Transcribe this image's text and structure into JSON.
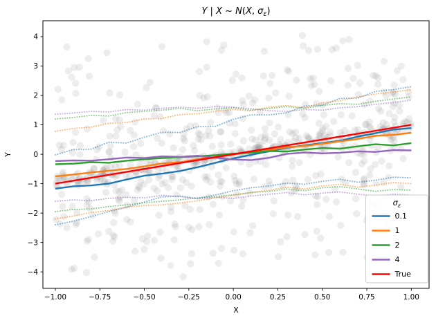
{
  "figure": {
    "title_plain": "Y | X ~ N(X, σₑ)",
    "title_segments": [
      {
        "t": "Y",
        "i": true
      },
      {
        "t": " | "
      },
      {
        "t": "X",
        "i": true
      },
      {
        "t": " ~ "
      },
      {
        "t": "N",
        "i": true
      },
      {
        "t": "("
      },
      {
        "t": "X",
        "i": true
      },
      {
        "t": ", "
      },
      {
        "t": "σ",
        "i": true
      },
      {
        "t": "ε",
        "i": true,
        "sub": true
      },
      {
        "t": ")"
      }
    ],
    "background_color": "#ffffff",
    "spine_color": "#000000",
    "legend": {
      "title_plain": "σε",
      "title_segments": [
        {
          "t": "σ",
          "i": true
        },
        {
          "t": "ε",
          "i": true,
          "sub": true
        }
      ],
      "entries": [
        {
          "label": "0.1",
          "color": "#1f77b4"
        },
        {
          "label": "1",
          "color": "#ff7f0e"
        },
        {
          "label": "2",
          "color": "#2ca02c"
        },
        {
          "label": "4",
          "color": "#9467bd"
        },
        {
          "label": "True",
          "color": "#ff0000"
        }
      ]
    }
  },
  "chart_data": {
    "type": "scatter",
    "title": "Y | X ~ N(X, σ_ε)",
    "xlabel": "X",
    "ylabel": "Y",
    "xlim": [
      -1.07,
      1.1
    ],
    "ylim": [
      -4.56,
      4.54
    ],
    "grid": false,
    "legend_position": "lower right",
    "x_ticks": {
      "values": [
        -1.0,
        -0.75,
        -0.5,
        -0.25,
        0.0,
        0.25,
        0.5,
        0.75,
        1.0
      ],
      "labels": [
        "−1.00",
        "−0.75",
        "−0.50",
        "−0.25",
        "0.00",
        "0.25",
        "0.50",
        "0.75",
        "1.00"
      ]
    },
    "y_ticks": {
      "values": [
        -4,
        -3,
        -2,
        -1,
        0,
        1,
        2,
        3,
        4
      ],
      "labels": [
        "−4",
        "−3",
        "−2",
        "−1",
        "0",
        "1",
        "2",
        "3",
        "4"
      ]
    },
    "line_x": [
      -1,
      -0.9,
      -0.8,
      -0.7,
      -0.6,
      -0.5,
      -0.4,
      -0.3,
      -0.2,
      -0.1,
      0,
      0.1,
      0.2,
      0.3,
      0.4,
      0.5,
      0.6,
      0.7,
      0.8,
      0.9,
      1
    ],
    "series": [
      {
        "name": "0.1",
        "color": "#1f77b4",
        "role": "estimate",
        "mean": [
          -1.17,
          -1.09,
          -1.06,
          -1.0,
          -0.86,
          -0.73,
          -0.66,
          -0.57,
          -0.44,
          -0.29,
          -0.14,
          -0.02,
          0.1,
          0.22,
          0.3,
          0.38,
          0.46,
          0.6,
          0.72,
          0.84,
          0.89
        ],
        "upper": [
          -0.02,
          0.16,
          0.17,
          0.41,
          0.38,
          0.58,
          0.75,
          0.74,
          0.94,
          0.95,
          1.19,
          1.34,
          1.34,
          1.41,
          1.64,
          1.67,
          1.9,
          1.91,
          2.14,
          2.2,
          2.3
        ],
        "lower": [
          -2.4,
          -2.28,
          -2.12,
          -1.95,
          -1.8,
          -1.62,
          -1.45,
          -1.42,
          -1.5,
          -1.38,
          -1.24,
          -1.14,
          -1.08,
          -0.98,
          -1.02,
          -0.92,
          -0.85,
          -0.95,
          -0.88,
          -0.78,
          -0.8
        ]
      },
      {
        "name": "1",
        "color": "#ff7f0e",
        "role": "estimate",
        "mean": [
          -0.75,
          -0.69,
          -0.62,
          -0.56,
          -0.5,
          -0.41,
          -0.31,
          -0.27,
          -0.17,
          -0.09,
          -0.01,
          0.09,
          0.14,
          0.24,
          0.28,
          0.36,
          0.44,
          0.52,
          0.63,
          0.66,
          0.73
        ],
        "upper": [
          0.78,
          0.88,
          0.92,
          1.05,
          1.08,
          1.2,
          1.22,
          1.35,
          1.38,
          1.46,
          1.52,
          1.48,
          1.6,
          1.66,
          1.58,
          1.75,
          1.82,
          1.95,
          2.05,
          2.12,
          2.19
        ],
        "lower": [
          -2.2,
          -2.1,
          -1.98,
          -1.92,
          -1.8,
          -1.74,
          -1.72,
          -1.66,
          -1.58,
          -1.48,
          -1.4,
          -1.3,
          -1.22,
          -1.12,
          -1.18,
          -1.08,
          -1.02,
          -1.12,
          -1.05,
          -0.96,
          -1.0
        ]
      },
      {
        "name": "2",
        "color": "#2ca02c",
        "role": "estimate",
        "mean": [
          -0.34,
          -0.32,
          -0.27,
          -0.29,
          -0.22,
          -0.17,
          -0.13,
          -0.1,
          -0.07,
          -0.03,
          0.02,
          0.05,
          0.11,
          0.09,
          0.16,
          0.21,
          0.19,
          0.27,
          0.34,
          0.3,
          0.38
        ],
        "upper": [
          1.2,
          1.25,
          1.32,
          1.3,
          1.42,
          1.46,
          1.5,
          1.56,
          1.48,
          1.54,
          1.58,
          1.5,
          1.56,
          1.62,
          1.56,
          1.66,
          1.72,
          1.7,
          1.8,
          1.88,
          1.95
        ],
        "lower": [
          -1.95,
          -1.88,
          -1.86,
          -1.78,
          -1.72,
          -1.65,
          -1.6,
          -1.55,
          -1.48,
          -1.44,
          -1.38,
          -1.3,
          -1.26,
          -1.18,
          -1.24,
          -1.14,
          -1.1,
          -1.18,
          -1.26,
          -1.2,
          -1.22
        ]
      },
      {
        "name": "4",
        "color": "#9467bd",
        "role": "estimate",
        "mean": [
          -0.23,
          -0.21,
          -0.22,
          -0.17,
          -0.11,
          -0.13,
          -0.07,
          -0.09,
          -0.05,
          -0.12,
          -0.18,
          -0.2,
          -0.12,
          0.01,
          0.06,
          0.03,
          0.05,
          0.1,
          0.08,
          0.14,
          0.13
        ],
        "upper": [
          1.36,
          1.4,
          1.46,
          1.44,
          1.52,
          1.5,
          1.56,
          1.6,
          1.56,
          1.62,
          1.6,
          1.55,
          1.48,
          1.46,
          1.52,
          1.5,
          1.58,
          1.62,
          1.7,
          1.76,
          1.84
        ],
        "lower": [
          -1.6,
          -1.55,
          -1.58,
          -1.5,
          -1.46,
          -1.48,
          -1.4,
          -1.44,
          -1.52,
          -1.46,
          -1.5,
          -1.42,
          -1.36,
          -1.3,
          -1.38,
          -1.32,
          -1.28,
          -1.36,
          -1.42,
          -1.36,
          -1.39
        ]
      },
      {
        "name": "True",
        "color": "#ff0000",
        "role": "true-line",
        "x": [
          -1,
          1
        ],
        "y": [
          -1,
          1
        ],
        "note": "true relation y = x"
      }
    ],
    "scatter": {
      "description": "observations y = x + N(0, sigma), pooled over all sigma values",
      "sigmas": [
        0.1,
        1,
        2,
        4
      ],
      "n_per_sigma": 185,
      "x_range": [
        -1,
        1
      ],
      "y_clip": [
        -4.2,
        4.05
      ],
      "seed": 11,
      "color": "#808080",
      "alpha": 0.14,
      "point_radius": 5.1
    },
    "style": {
      "solid_linewidth": 2.4,
      "dotted_linewidth": 2.0,
      "band_alpha": 0.55
    }
  }
}
